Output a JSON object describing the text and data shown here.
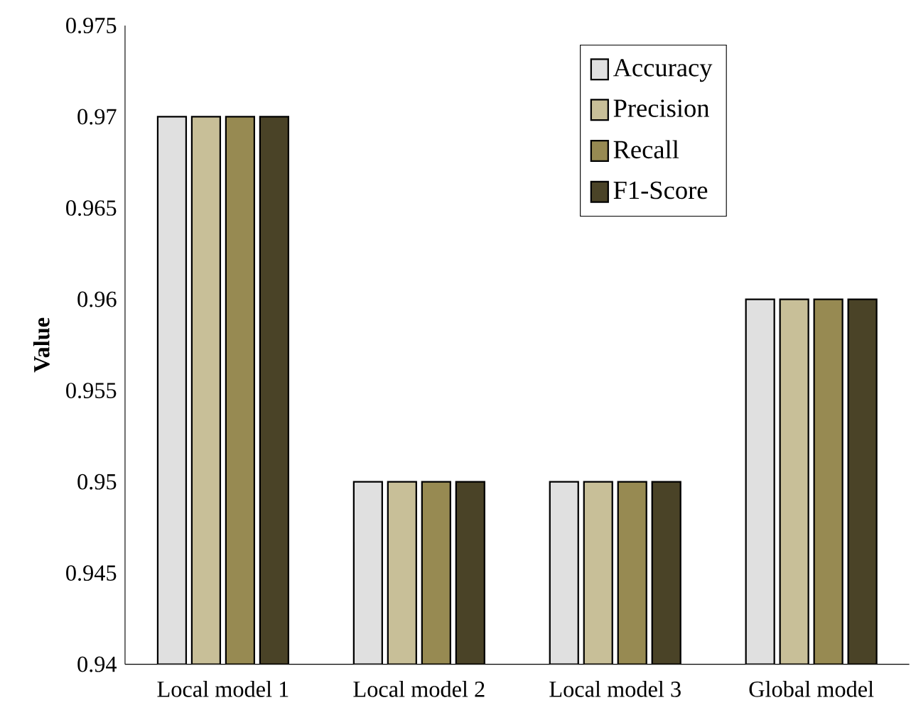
{
  "chart_data": {
    "type": "bar",
    "ylabel": "Value",
    "categories": [
      "Local model 1",
      "Local model 2",
      "Local model 3",
      "Global model"
    ],
    "series": [
      {
        "name": "Accuracy",
        "color": "#e0e0e0",
        "values": [
          0.97,
          0.95,
          0.95,
          0.96
        ]
      },
      {
        "name": "Precision",
        "color": "#c8bf98",
        "values": [
          0.97,
          0.95,
          0.95,
          0.96
        ]
      },
      {
        "name": "Recall",
        "color": "#978a52",
        "values": [
          0.97,
          0.95,
          0.95,
          0.96
        ]
      },
      {
        "name": "F1-Score",
        "color": "#4a4327",
        "values": [
          0.97,
          0.95,
          0.95,
          0.96
        ]
      }
    ],
    "ylim": [
      0.94,
      0.975
    ],
    "yticks": [
      0.94,
      0.945,
      0.95,
      0.955,
      0.96,
      0.965,
      0.97,
      0.975
    ],
    "legend": "top right",
    "grid": false
  }
}
